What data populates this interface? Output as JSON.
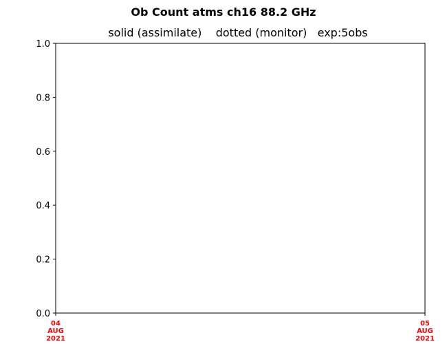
{
  "chart_data": {
    "type": "line",
    "title": "Ob Count atms ch16 88.2 GHz",
    "subtitle": "solid (assimilate)    dotted (monitor)   exp:5obs",
    "xlabel": "",
    "ylabel": "",
    "xlim": [
      "04 AUG 2021",
      "05 AUG 2021"
    ],
    "ylim": [
      0.0,
      1.0
    ],
    "yticks": [
      {
        "value": 0.0,
        "label": "0.0"
      },
      {
        "value": 0.2,
        "label": "0.2"
      },
      {
        "value": 0.4,
        "label": "0.4"
      },
      {
        "value": 0.6,
        "label": "0.6"
      },
      {
        "value": 0.8,
        "label": "0.8"
      },
      {
        "value": 1.0,
        "label": "1.0"
      }
    ],
    "xticks": [
      {
        "value": 0,
        "lines": [
          "04",
          "AUG",
          "2021"
        ]
      },
      {
        "value": 1,
        "lines": [
          "05",
          "AUG",
          "2021"
        ]
      }
    ],
    "xtick_color": "#ff0000",
    "grid": false,
    "series": []
  }
}
